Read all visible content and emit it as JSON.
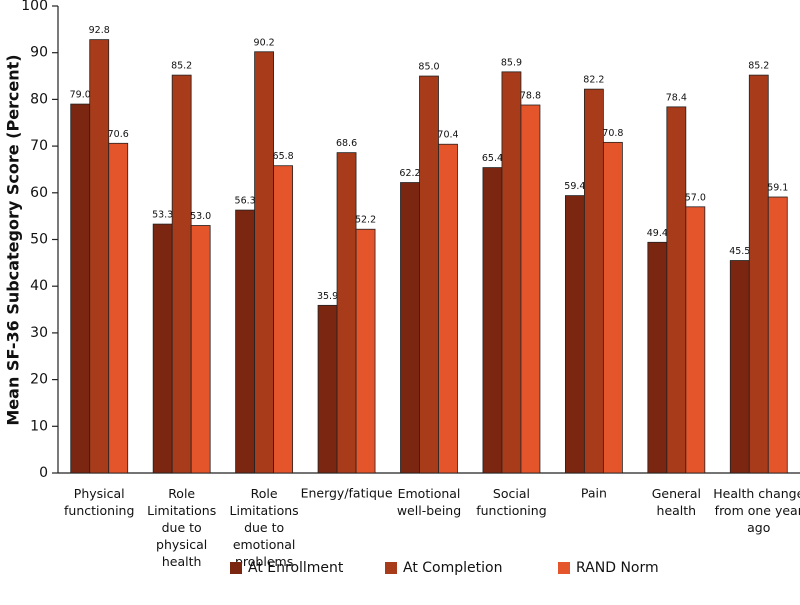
{
  "chart_data": {
    "type": "bar",
    "y_label": "Mean SF-36 Subcategory Score (Percent)",
    "categories": [
      "Physical\nfunctioning",
      "Role\nLimitations\ndue to\nphysical\nhealth",
      "Role\nLimitations\ndue to\nemotional\nproblems",
      "Energy/fatique",
      "Emotional\nwell-being",
      "Social\nfunctioning",
      "Pain",
      "General\nhealth",
      "Health change\nfrom one year\nago"
    ],
    "series": [
      {
        "name": "At Enrollment",
        "color": "#7a2610",
        "values": [
          79.0,
          53.3,
          56.3,
          35.9,
          62.2,
          65.4,
          59.4,
          49.4,
          45.5
        ],
        "value_labels": [
          "79.0",
          "53.3",
          "56.3",
          "35.9",
          "62.2",
          "65.4",
          "59.4",
          "49.4",
          "45.5"
        ]
      },
      {
        "name": "At Completion",
        "color": "#a83b1a",
        "values": [
          92.8,
          85.2,
          90.2,
          68.6,
          85.0,
          85.9,
          82.2,
          78.4,
          85.2
        ],
        "value_labels": [
          "92.8",
          "85.2",
          "90.2",
          "68.6",
          "85.0",
          "85.9",
          "82.2",
          "78.4",
          "85.2"
        ]
      },
      {
        "name": "RAND Norm",
        "color": "#e4552c",
        "values": [
          70.6,
          53.0,
          65.8,
          52.2,
          70.4,
          78.8,
          70.8,
          57.0,
          59.1
        ],
        "value_labels": [
          "70.6",
          "53.0",
          "65.8",
          "52.2",
          "70.4",
          "78.8",
          "70.8",
          "57.0",
          "59.1"
        ]
      }
    ],
    "ylim": [
      0,
      100
    ],
    "yticks": [
      0,
      10,
      20,
      30,
      40,
      50,
      60,
      70,
      80,
      90,
      100
    ],
    "grid": false,
    "legend": "bottom"
  }
}
